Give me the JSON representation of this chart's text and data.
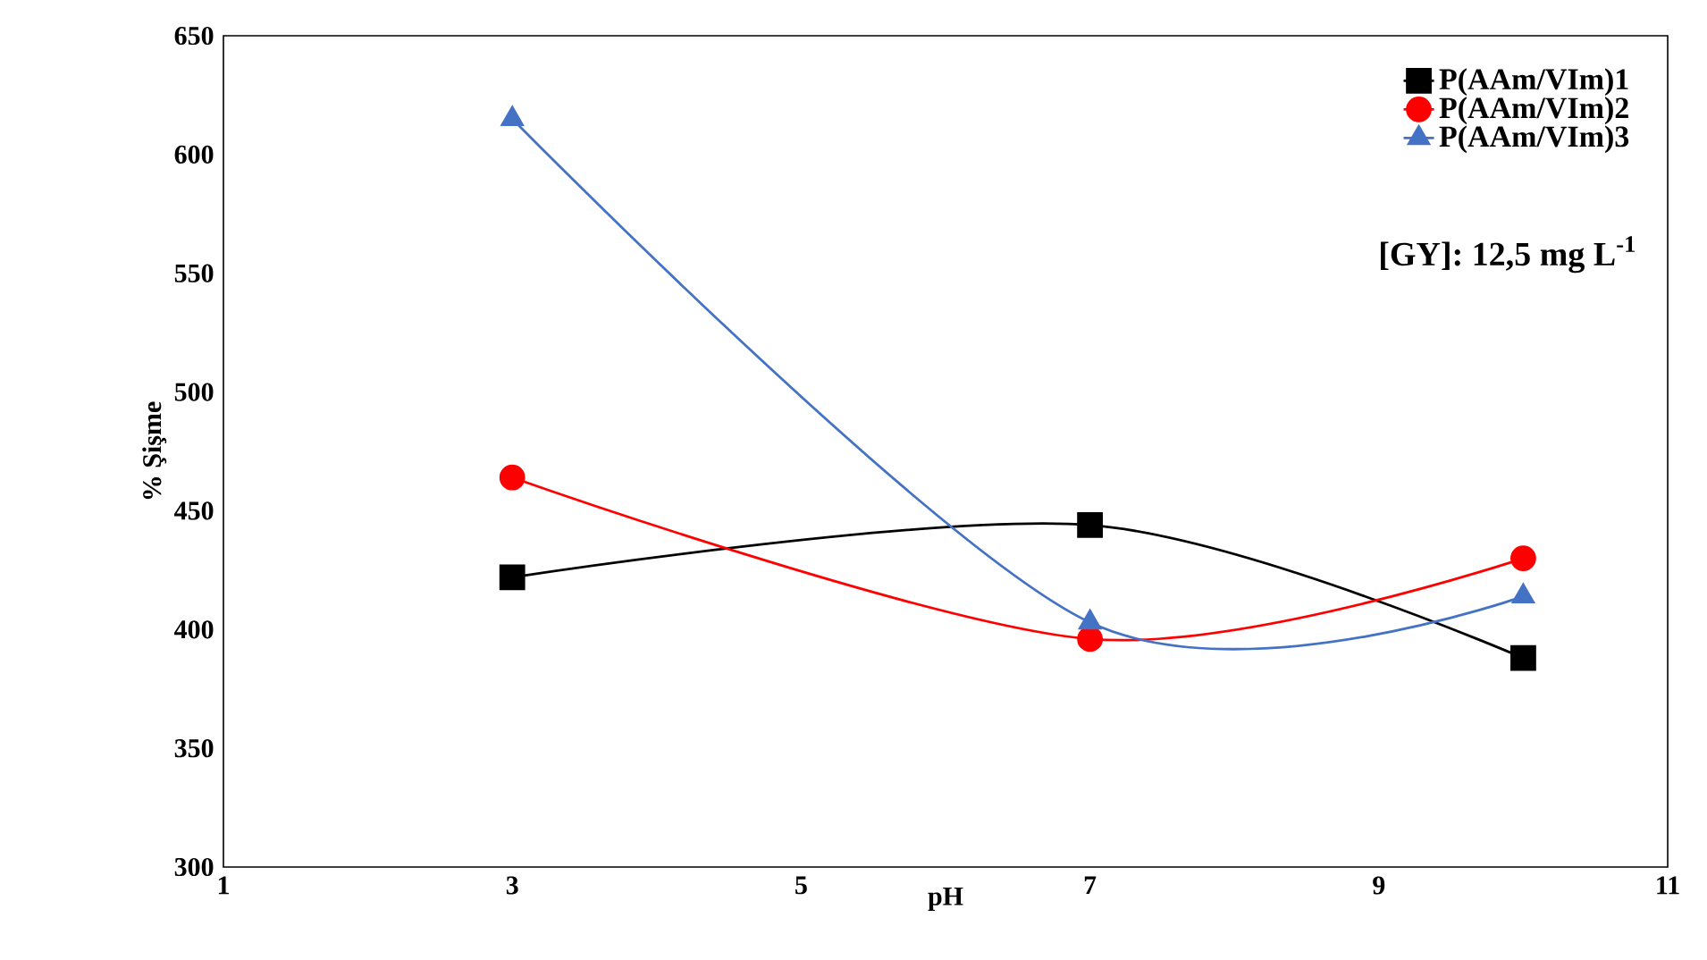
{
  "chart_data": {
    "type": "line",
    "xlabel": "pH",
    "ylabel": "% Şişme",
    "xlim": [
      1,
      11
    ],
    "xticks": [
      1,
      3,
      5,
      7,
      9,
      11
    ],
    "ylim": [
      300,
      650
    ],
    "yticks": [
      300,
      350,
      400,
      450,
      500,
      550,
      600,
      650
    ],
    "x": [
      3,
      7,
      10
    ],
    "series": [
      {
        "name": "P(AAm/VIm)1",
        "color": "#000000",
        "marker": "square",
        "values": [
          422,
          444,
          388
        ]
      },
      {
        "name": "P(AAm/VIm)2",
        "color": "#ff0000",
        "marker": "circle",
        "values": [
          464,
          396,
          430
        ]
      },
      {
        "name": "P(AAm/VIm)3",
        "color": "#4472c4",
        "marker": "triangle",
        "values": [
          615,
          403,
          414
        ]
      }
    ],
    "line_style": "solid",
    "legend": "top right",
    "annotations": [
      "[GY]: 12,5 mg L$^{-1}$"
    ]
  }
}
